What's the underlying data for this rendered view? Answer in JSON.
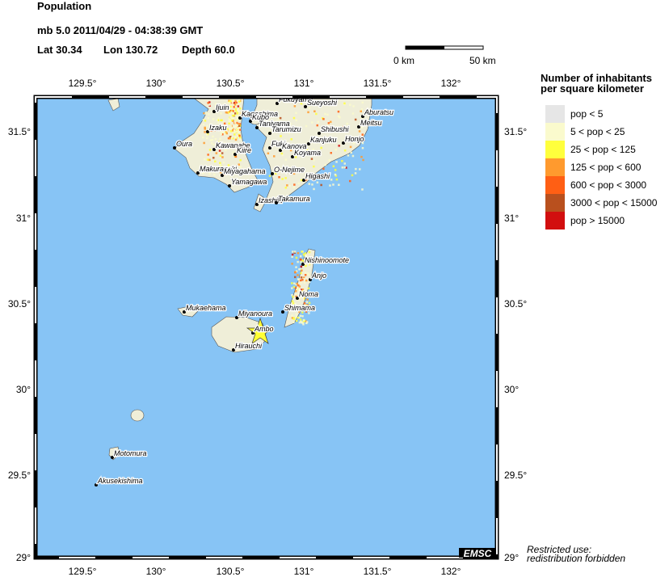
{
  "header": {
    "title": "Population",
    "event": "mb 5.0  2011/04/29 - 04:38:39 GMT",
    "lat": "Lat 30.34",
    "lon": "Lon 130.72",
    "depth": "Depth  60.0"
  },
  "scale_bar": {
    "start": "0 km",
    "end": "50 km"
  },
  "legend": {
    "title": [
      "Number of inhabitants",
      "per square kilometer"
    ],
    "items": [
      {
        "label": "pop < 5",
        "color": "#e6e6e6"
      },
      {
        "label": "5 < pop < 25",
        "color": "#fafacd"
      },
      {
        "label": "25 < pop < 125",
        "color": "#ffff3c"
      },
      {
        "label": "125 < pop < 600",
        "color": "#ff9a2e"
      },
      {
        "label": "600 < pop < 3000",
        "color": "#ff5f14"
      },
      {
        "label": "3000 < pop < 15000",
        "color": "#b9501e"
      },
      {
        "label": "pop > 15000",
        "color": "#d20f0f"
      }
    ]
  },
  "axes": {
    "lon_labels": [
      "129.5°",
      "130°",
      "130.5°",
      "131°",
      "131.5°",
      "132°"
    ],
    "lat_labels": [
      "31.5°",
      "31°",
      "30.5°",
      "30°",
      "29.5°",
      "29°"
    ]
  },
  "places": [
    "Fukuyama",
    "Sueyoshi",
    "Aburatsu",
    "Meitsu",
    "Ijuin",
    "Kagoshima",
    "Kubo",
    "Taniyama",
    "Tarumizu",
    "Shibushi",
    "Honjo",
    "Izaku",
    "Oura",
    "Kawanabe",
    "Kiire",
    "Fuki",
    "Kanoya",
    "Koyama",
    "Kanjuku",
    "Makurazaki",
    "Miyagahama",
    "Yamagawa",
    "O-Nejime",
    "Higashi",
    "Izashiki",
    "Takamura",
    "Nishinoomote",
    "Anjo",
    "Noma",
    "Shimama",
    "Mukaehama",
    "Miyanoura",
    "Ambo",
    "Hirauchi",
    "Motomura",
    "Akusekishima"
  ],
  "credit": "EMSC",
  "notice": [
    "Restricted use:",
    "redistribution forbidden"
  ]
}
